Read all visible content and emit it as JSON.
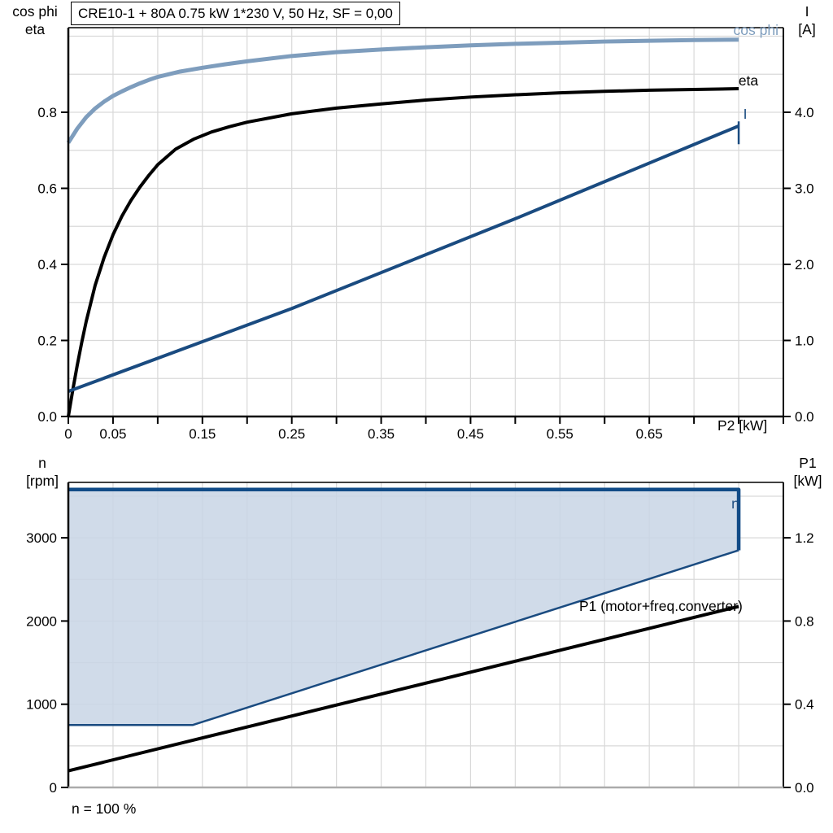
{
  "title": "CRE10-1 + 80A   0.75 kW   1*230 V, 50 Hz, SF = 0,00",
  "footer_note": "n = 100 %",
  "colors": {
    "cos_phi_line": "#7E9DBD",
    "current_line": "#1A4B80",
    "speed_line": "#114B87",
    "eta_line": "#000000",
    "p1_line": "#000000",
    "region_fill": "rgba(200,213,229,0.85)",
    "grid": "#D9D9D9",
    "axis": "#000000",
    "bottom_axis_gray": "#ABABAB"
  },
  "annotations": {
    "cos_phi": "cos phi",
    "eta": "eta",
    "current": "I",
    "speed": "n",
    "p1": "P1 (motor+freq.converter)"
  },
  "chart_data": [
    {
      "id": "top",
      "type": "line",
      "title": "CRE10-1 + 80A   0.75 kW   1*230 V, 50 Hz, SF = 0,00",
      "x_axis": {
        "title": "P2 [kW]",
        "min": 0,
        "max": 0.8,
        "grid_step": 0.05,
        "tick_step": 0.05,
        "ticks_visible": true,
        "axis_color": "#000000",
        "labels": [
          [
            0,
            "0"
          ],
          [
            0.05,
            "0.05"
          ],
          [
            0.15,
            "0.15"
          ],
          [
            0.25,
            "0.25"
          ],
          [
            0.35,
            "0.35"
          ],
          [
            0.45,
            "0.45"
          ],
          [
            0.55,
            "0.55"
          ],
          [
            0.65,
            "0.65"
          ]
        ]
      },
      "y_left": {
        "title_lines": [
          "cos phi",
          "eta"
        ],
        "min": 0,
        "max": 1.0225,
        "grid_step": 0.1,
        "labels": [
          [
            0,
            "0.0"
          ],
          [
            0.2,
            "0.2"
          ],
          [
            0.4,
            "0.4"
          ],
          [
            0.6,
            "0.6"
          ],
          [
            0.8,
            "0.8"
          ]
        ]
      },
      "y_right": {
        "title_lines": [
          "I",
          "[A]"
        ],
        "min": 0,
        "max": 5.1125,
        "labels": [
          [
            0,
            "0.0"
          ],
          [
            1,
            "1.0"
          ],
          [
            2,
            "2.0"
          ],
          [
            3,
            "3.0"
          ],
          [
            4,
            "4.0"
          ]
        ]
      },
      "series": [
        {
          "name": "cos phi",
          "axis": "left",
          "color": "#7E9DBD",
          "width": 5,
          "points": [
            [
              0,
              0.72
            ],
            [
              0.01,
              0.757
            ],
            [
              0.02,
              0.787
            ],
            [
              0.03,
              0.81
            ],
            [
              0.04,
              0.828
            ],
            [
              0.05,
              0.843
            ],
            [
              0.06,
              0.855
            ],
            [
              0.07,
              0.866
            ],
            [
              0.08,
              0.876
            ],
            [
              0.09,
              0.885
            ],
            [
              0.1,
              0.893
            ],
            [
              0.125,
              0.907
            ],
            [
              0.15,
              0.917
            ],
            [
              0.175,
              0.926
            ],
            [
              0.2,
              0.934
            ],
            [
              0.25,
              0.948
            ],
            [
              0.3,
              0.958
            ],
            [
              0.35,
              0.965
            ],
            [
              0.4,
              0.971
            ],
            [
              0.45,
              0.976
            ],
            [
              0.5,
              0.98
            ],
            [
              0.55,
              0.983
            ],
            [
              0.6,
              0.986
            ],
            [
              0.65,
              0.988
            ],
            [
              0.7,
              0.99
            ],
            [
              0.75,
              0.991
            ]
          ]
        },
        {
          "name": "eta",
          "axis": "left",
          "color": "#000000",
          "width": 4,
          "points": [
            [
              0,
              0
            ],
            [
              0.005,
              0.07
            ],
            [
              0.01,
              0.135
            ],
            [
              0.015,
              0.195
            ],
            [
              0.02,
              0.25
            ],
            [
              0.03,
              0.345
            ],
            [
              0.04,
              0.418
            ],
            [
              0.05,
              0.478
            ],
            [
              0.06,
              0.527
            ],
            [
              0.07,
              0.568
            ],
            [
              0.08,
              0.603
            ],
            [
              0.09,
              0.634
            ],
            [
              0.1,
              0.662
            ],
            [
              0.12,
              0.703
            ],
            [
              0.14,
              0.729
            ],
            [
              0.16,
              0.748
            ],
            [
              0.18,
              0.762
            ],
            [
              0.2,
              0.774
            ],
            [
              0.25,
              0.796
            ],
            [
              0.3,
              0.811
            ],
            [
              0.35,
              0.822
            ],
            [
              0.4,
              0.832
            ],
            [
              0.45,
              0.84
            ],
            [
              0.5,
              0.846
            ],
            [
              0.55,
              0.851
            ],
            [
              0.6,
              0.855
            ],
            [
              0.65,
              0.858
            ],
            [
              0.7,
              0.86
            ],
            [
              0.75,
              0.862
            ]
          ]
        },
        {
          "name": "I",
          "axis": "right",
          "color": "#1A4B80",
          "width": 4,
          "points": [
            [
              0,
              0.33
            ],
            [
              0.25,
              1.42
            ],
            [
              0.5,
              2.6
            ],
            [
              0.75,
              3.82
            ]
          ]
        },
        {
          "name": "I end marker",
          "axis": "right",
          "color": "#1A4B80",
          "width": 2.5,
          "points": [
            [
              0.75,
              3.58
            ],
            [
              0.75,
              3.88
            ]
          ]
        }
      ]
    },
    {
      "id": "bottom",
      "type": "line",
      "title": "",
      "x_axis": {
        "title": "",
        "min": 0,
        "max": 0.8,
        "grid_step": 0.05,
        "tick_step": 0.05,
        "ticks_visible": false,
        "axis_color": "#ABABAB",
        "labels": []
      },
      "y_left": {
        "title_lines": [
          "n",
          "[rpm]"
        ],
        "min": 0,
        "max": 3666,
        "grid_step": 500,
        "labels": [
          [
            0,
            "0"
          ],
          [
            1000,
            "1000"
          ],
          [
            2000,
            "2000"
          ],
          [
            3000,
            "3000"
          ]
        ]
      },
      "y_right": {
        "title_lines": [
          "P1",
          "[kW]"
        ],
        "min": 0,
        "max": 1.4664,
        "labels": [
          [
            0,
            "0.0"
          ],
          [
            0.4,
            "0.4"
          ],
          [
            0.8,
            "0.8"
          ],
          [
            1.2,
            "1.2"
          ]
        ]
      },
      "region": {
        "name": "n operating range",
        "axis": "left",
        "fill": "rgba(200,213,229,0.85)",
        "points": [
          [
            0,
            3580
          ],
          [
            0.75,
            3580
          ],
          [
            0.75,
            2850
          ],
          [
            0.139,
            750
          ],
          [
            0,
            750
          ]
        ]
      },
      "series": [
        {
          "name": "n",
          "axis": "left",
          "color": "#114B87",
          "width": 4.5,
          "points": [
            [
              0,
              3580
            ],
            [
              0.75,
              3580
            ],
            [
              0.75,
              2850
            ]
          ]
        },
        {
          "name": "n range lower boundary",
          "axis": "left",
          "color": "#1A4B80",
          "width": 2.5,
          "points": [
            [
              0,
              750
            ],
            [
              0.139,
              750
            ],
            [
              0.75,
              2850
            ]
          ]
        },
        {
          "name": "P1 (motor+freq.converter)",
          "axis": "right",
          "color": "#000000",
          "width": 4,
          "points": [
            [
              0,
              0.08
            ],
            [
              0.75,
              0.87
            ]
          ]
        }
      ]
    }
  ]
}
